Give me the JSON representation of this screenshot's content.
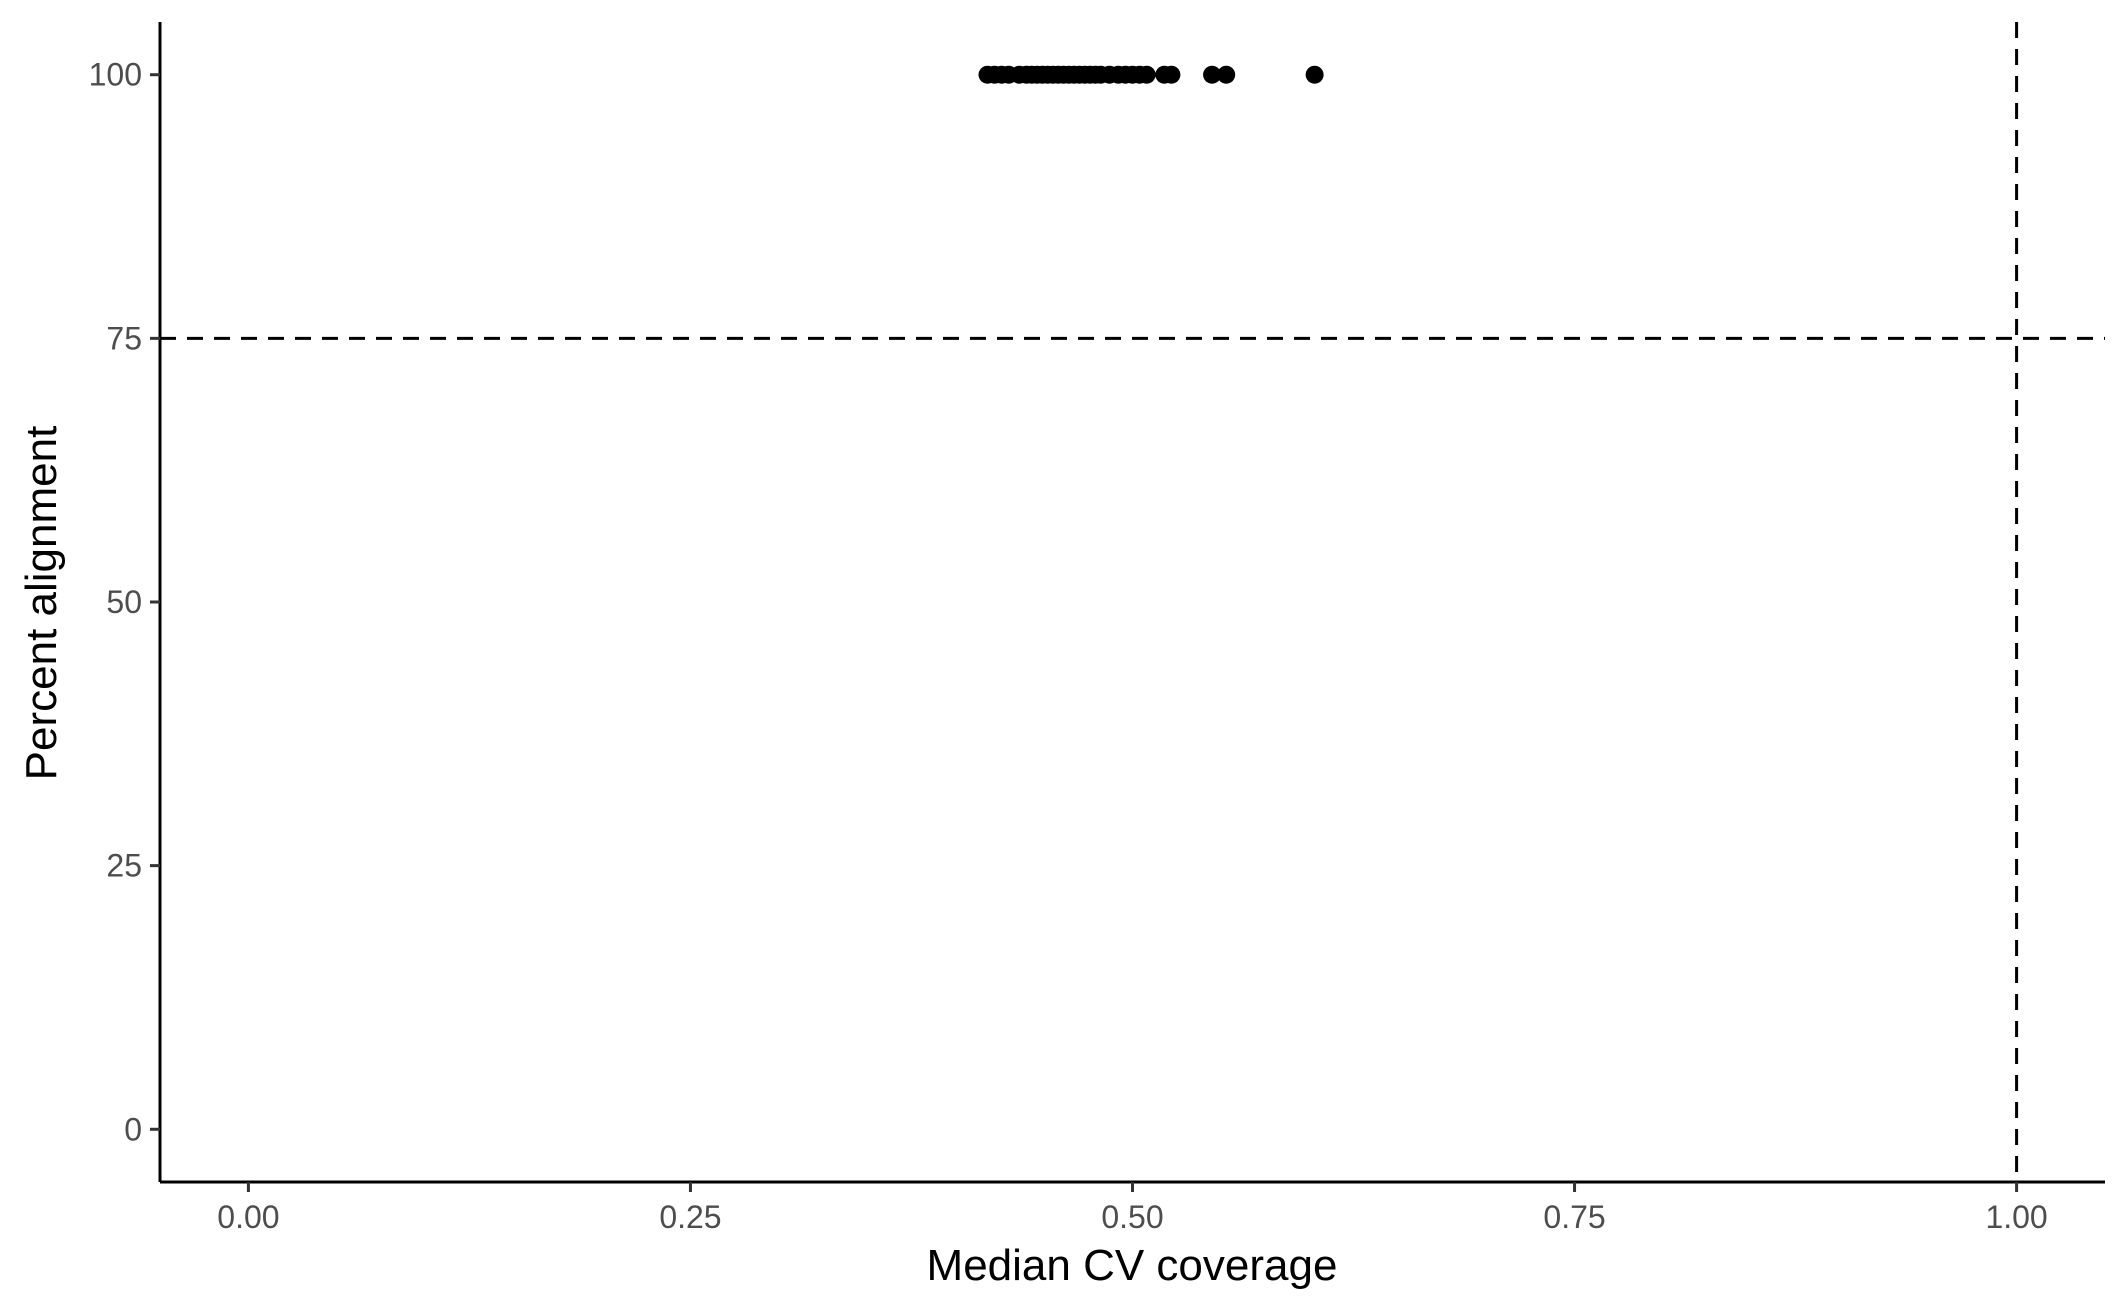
{
  "chart_data": {
    "type": "scatter",
    "title": "",
    "xlabel": "Median CV coverage",
    "ylabel": "Percent alignment",
    "xlim": [
      -0.05,
      1.05
    ],
    "ylim": [
      -5,
      105
    ],
    "x_ticks": [
      0.0,
      0.25,
      0.5,
      0.75,
      1.0
    ],
    "x_tick_labels": [
      "0.00",
      "0.25",
      "0.50",
      "0.75",
      "1.00"
    ],
    "y_ticks": [
      0,
      25,
      50,
      75,
      100
    ],
    "y_tick_labels": [
      "0",
      "25",
      "50",
      "75",
      "100"
    ],
    "grid": false,
    "legend": "none",
    "reference_lines": {
      "horizontal": {
        "y": 75,
        "style": "dashed"
      },
      "vertical": {
        "x": 1.0,
        "style": "dashed"
      }
    },
    "series": [
      {
        "x": [
          0.418,
          0.422,
          0.426,
          0.43,
          0.436,
          0.44,
          0.443,
          0.446,
          0.449,
          0.452,
          0.455,
          0.458,
          0.461,
          0.464,
          0.467,
          0.47,
          0.473,
          0.476,
          0.479,
          0.482,
          0.487,
          0.492,
          0.496,
          0.5,
          0.504,
          0.508,
          0.518,
          0.522,
          0.545,
          0.553,
          0.603
        ],
        "y": [
          100,
          100,
          100,
          100,
          100,
          100,
          100,
          100,
          100,
          100,
          100,
          100,
          100,
          100,
          100,
          100,
          100,
          100,
          100,
          100,
          100,
          100,
          100,
          100,
          100,
          100,
          100,
          100,
          100,
          100,
          100
        ],
        "color": "#000000"
      }
    ]
  }
}
